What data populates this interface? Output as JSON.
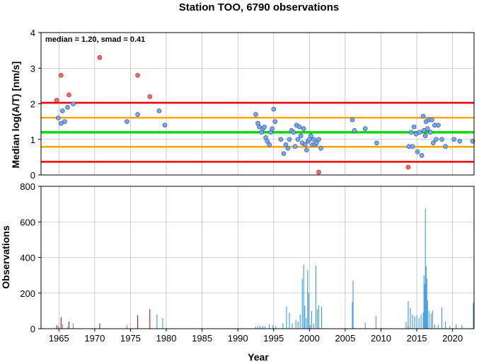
{
  "colors": {
    "red_line": "#ff0000",
    "orange_line": "#ffa500",
    "green_line": "#00dd00",
    "point_normal": "#7aa6f0",
    "point_outlier": "#f46a6a",
    "bar_normal": "#3a9be0",
    "bar_outlier": "#d01010",
    "grid": "#aaaaaa"
  },
  "chart_data": [
    {
      "type": "scatter",
      "title": "Station TOO, 6790 observations",
      "annotation": "median = 1.20, smad = 0.41",
      "xlabel": "",
      "ylabel": "Median log(A/T) [nm/s]",
      "xlim": [
        1962.5,
        2023
      ],
      "ylim": [
        0,
        4
      ],
      "yticks": [
        0,
        1,
        2,
        3,
        4
      ],
      "grid": true,
      "hlines": [
        {
          "y": 2.03,
          "role": "red"
        },
        {
          "y": 1.61,
          "role": "orange"
        },
        {
          "y": 1.2,
          "role": "green"
        },
        {
          "y": 0.79,
          "role": "orange"
        },
        {
          "y": 0.37,
          "role": "red"
        }
      ],
      "points_normal": [
        [
          1964.9,
          1.6
        ],
        [
          1965.3,
          1.45
        ],
        [
          1965.5,
          1.8
        ],
        [
          1965.8,
          1.5
        ],
        [
          1966.2,
          1.9
        ],
        [
          1967.0,
          2.0
        ],
        [
          1974.5,
          1.5
        ],
        [
          1976.0,
          1.7
        ],
        [
          1979.0,
          1.8
        ],
        [
          1979.8,
          1.4
        ],
        [
          1992.5,
          1.7
        ],
        [
          1992.8,
          1.45
        ],
        [
          1993.0,
          1.35
        ],
        [
          1993.3,
          1.2
        ],
        [
          1993.5,
          1.3
        ],
        [
          1993.7,
          1.35
        ],
        [
          1993.9,
          1.05
        ],
        [
          1994.1,
          0.95
        ],
        [
          1994.4,
          0.85
        ],
        [
          1994.6,
          1.2
        ],
        [
          1994.8,
          1.3
        ],
        [
          1995.0,
          1.85
        ],
        [
          1995.2,
          1.5
        ],
        [
          1996.0,
          1.0
        ],
        [
          1996.4,
          0.6
        ],
        [
          1996.7,
          0.85
        ],
        [
          1997.0,
          0.75
        ],
        [
          1997.2,
          1.0
        ],
        [
          1997.5,
          1.25
        ],
        [
          1997.8,
          1.2
        ],
        [
          1998.0,
          0.8
        ],
        [
          1998.2,
          1.4
        ],
        [
          1998.4,
          1.0
        ],
        [
          1998.6,
          1.35
        ],
        [
          1998.8,
          1.1
        ],
        [
          1999.0,
          0.9
        ],
        [
          1999.2,
          1.3
        ],
        [
          1999.4,
          0.85
        ],
        [
          1999.6,
          0.7
        ],
        [
          1999.8,
          0.95
        ],
        [
          2000.0,
          1.0
        ],
        [
          2000.2,
          1.1
        ],
        [
          2000.4,
          0.85
        ],
        [
          2000.6,
          1.0
        ],
        [
          2000.8,
          0.85
        ],
        [
          2001.0,
          0.9
        ],
        [
          2001.3,
          1.0
        ],
        [
          2001.6,
          0.75
        ],
        [
          2006.0,
          1.55
        ],
        [
          2006.3,
          1.25
        ],
        [
          2007.8,
          1.3
        ],
        [
          2009.4,
          0.9
        ],
        [
          2013.9,
          0.8
        ],
        [
          2014.2,
          1.2
        ],
        [
          2014.4,
          0.8
        ],
        [
          2014.6,
          1.35
        ],
        [
          2014.9,
          1.15
        ],
        [
          2015.1,
          0.65
        ],
        [
          2015.4,
          1.2
        ],
        [
          2015.7,
          0.55
        ],
        [
          2015.9,
          1.65
        ],
        [
          2016.0,
          1.25
        ],
        [
          2016.2,
          1.1
        ],
        [
          2016.3,
          1.5
        ],
        [
          2016.5,
          1.3
        ],
        [
          2016.7,
          1.55
        ],
        [
          2016.9,
          1.2
        ],
        [
          2017.1,
          1.55
        ],
        [
          2017.3,
          0.9
        ],
        [
          2017.5,
          1.4
        ],
        [
          2017.7,
          1.0
        ],
        [
          2018.0,
          1.4
        ],
        [
          2018.5,
          1.0
        ],
        [
          2019.0,
          0.8
        ],
        [
          2020.2,
          1.0
        ],
        [
          2021.0,
          0.95
        ],
        [
          2022.8,
          0.95
        ]
      ],
      "points_outlier": [
        [
          1964.7,
          2.1
        ],
        [
          1965.3,
          2.8
        ],
        [
          1966.4,
          2.25
        ],
        [
          1970.7,
          3.3
        ],
        [
          1976.0,
          2.8
        ],
        [
          1977.7,
          2.2
        ],
        [
          2001.3,
          0.08
        ],
        [
          2013.8,
          0.22
        ]
      ]
    },
    {
      "type": "bar",
      "title": "",
      "xlabel": "Year",
      "ylabel": "Observations",
      "xlim": [
        1962.5,
        2023
      ],
      "ylim": [
        0,
        800
      ],
      "yticks": [
        0,
        200,
        400,
        600,
        800
      ],
      "xticks": [
        1965,
        1970,
        1975,
        1980,
        1985,
        1990,
        1995,
        2000,
        2005,
        2010,
        2015,
        2020
      ],
      "grid": true,
      "bars_normal": [
        [
          1964.9,
          15
        ],
        [
          1965.5,
          25
        ],
        [
          1966.2,
          10
        ],
        [
          1967.0,
          30
        ],
        [
          1974.5,
          20
        ],
        [
          1976.0,
          10
        ],
        [
          1978.7,
          80
        ],
        [
          1979.5,
          60
        ],
        [
          1992.5,
          10
        ],
        [
          1992.8,
          12
        ],
        [
          1993.1,
          18
        ],
        [
          1993.5,
          15
        ],
        [
          1993.8,
          12
        ],
        [
          1994.4,
          25
        ],
        [
          1994.9,
          20
        ],
        [
          1995.3,
          15
        ],
        [
          1996.3,
          30
        ],
        [
          1996.8,
          125
        ],
        [
          1997.2,
          90
        ],
        [
          1997.6,
          30
        ],
        [
          1998.1,
          50
        ],
        [
          1998.4,
          40
        ],
        [
          1998.7,
          80
        ],
        [
          1999.0,
          280
        ],
        [
          1999.2,
          360
        ],
        [
          1999.35,
          130
        ],
        [
          1999.55,
          60
        ],
        [
          1999.75,
          330
        ],
        [
          1999.9,
          200
        ],
        [
          2000.1,
          20
        ],
        [
          2000.3,
          100
        ],
        [
          2000.6,
          30
        ],
        [
          2000.9,
          355
        ],
        [
          2001.1,
          110
        ],
        [
          2001.3,
          130
        ],
        [
          2001.7,
          125
        ],
        [
          2006.0,
          150
        ],
        [
          2006.1,
          270
        ],
        [
          2007.8,
          35
        ],
        [
          2009.3,
          70
        ],
        [
          2013.5,
          40
        ],
        [
          2013.8,
          155
        ],
        [
          2014.1,
          115
        ],
        [
          2014.4,
          80
        ],
        [
          2014.7,
          70
        ],
        [
          2015.0,
          75
        ],
        [
          2015.3,
          60
        ],
        [
          2015.6,
          80
        ],
        [
          2015.9,
          90
        ],
        [
          2016.0,
          300
        ],
        [
          2016.1,
          250
        ],
        [
          2016.2,
          675
        ],
        [
          2016.3,
          350
        ],
        [
          2016.4,
          280
        ],
        [
          2016.5,
          160
        ],
        [
          2016.7,
          100
        ],
        [
          2017.0,
          85
        ],
        [
          2017.2,
          100
        ],
        [
          2017.5,
          25
        ],
        [
          2018.0,
          20
        ],
        [
          2018.5,
          120
        ],
        [
          2019.0,
          40
        ],
        [
          2019.6,
          15
        ],
        [
          2020.5,
          25
        ],
        [
          2021.3,
          20
        ],
        [
          2022.9,
          145
        ]
      ],
      "bars_outlier": [
        [
          1964.7,
          20
        ],
        [
          1965.3,
          65
        ],
        [
          1966.4,
          40
        ],
        [
          1970.7,
          30
        ],
        [
          1976.0,
          75
        ],
        [
          1977.7,
          110
        ],
        [
          2001.3,
          5
        ],
        [
          2013.8,
          15
        ]
      ]
    }
  ]
}
